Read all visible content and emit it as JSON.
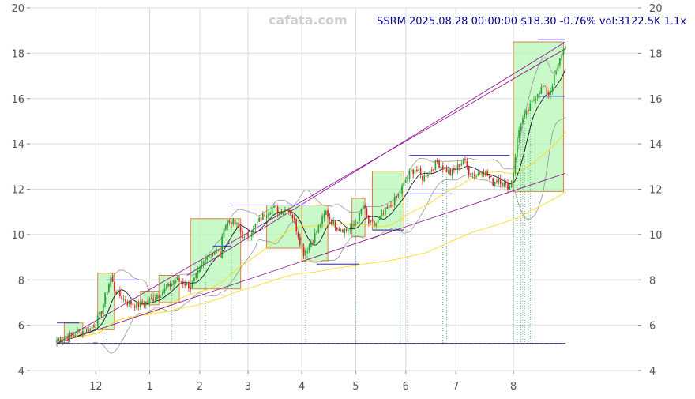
{
  "chart_data": {
    "type": "candlestick",
    "watermark": "cafata.com",
    "header": "SSRM 2025.08.28 00:00:00 $18.30 -0.76% vol:3122.5K 1.1x",
    "ticker": "SSRM",
    "last_close": 18.3,
    "ylim": [
      4,
      20
    ],
    "yticks": [
      4,
      6,
      8,
      10,
      12,
      14,
      16,
      18,
      20
    ],
    "xlim": [
      0,
      300
    ],
    "xticks": [
      {
        "label": "12",
        "x": 21
      },
      {
        "label": "1",
        "x": 50
      },
      {
        "label": "2",
        "x": 77
      },
      {
        "label": "3",
        "x": 103
      },
      {
        "label": "4",
        "x": 132
      },
      {
        "label": "5",
        "x": 161
      },
      {
        "label": "6",
        "x": 188
      },
      {
        "label": "7",
        "x": 215
      },
      {
        "label": "8",
        "x": 246
      }
    ],
    "grid": true,
    "close_anchors": [
      [
        0,
        5.35
      ],
      [
        6,
        5.5
      ],
      [
        12,
        5.7
      ],
      [
        18,
        5.85
      ],
      [
        21,
        6.1
      ],
      [
        24,
        6.6
      ],
      [
        27,
        7.6
      ],
      [
        29,
        8.1
      ],
      [
        31,
        7.6
      ],
      [
        34,
        7.3
      ],
      [
        38,
        7.0
      ],
      [
        44,
        6.9
      ],
      [
        48,
        7.0
      ],
      [
        52,
        7.2
      ],
      [
        56,
        7.4
      ],
      [
        60,
        7.7
      ],
      [
        64,
        8.0
      ],
      [
        68,
        7.9
      ],
      [
        72,
        7.7
      ],
      [
        75,
        8.1
      ],
      [
        78,
        8.6
      ],
      [
        81,
        9.1
      ],
      [
        86,
        9.3
      ],
      [
        88,
        9.1
      ],
      [
        90,
        10.4
      ],
      [
        94,
        10.6
      ],
      [
        98,
        10.3
      ],
      [
        101,
        9.8
      ],
      [
        104,
        10.1
      ],
      [
        108,
        10.5
      ],
      [
        112,
        10.9
      ],
      [
        116,
        11.2
      ],
      [
        120,
        11.0
      ],
      [
        124,
        11.2
      ],
      [
        127,
        10.8
      ],
      [
        130,
        10.0
      ],
      [
        133,
        9.2
      ],
      [
        135,
        9.4
      ],
      [
        138,
        9.8
      ],
      [
        141,
        10.3
      ],
      [
        145,
        11.0
      ],
      [
        148,
        10.6
      ],
      [
        152,
        10.3
      ],
      [
        156,
        10.2
      ],
      [
        160,
        10.4
      ],
      [
        163,
        10.8
      ],
      [
        165,
        11.3
      ],
      [
        168,
        10.5
      ],
      [
        171,
        10.4
      ],
      [
        175,
        10.8
      ],
      [
        179,
        11.2
      ],
      [
        183,
        11.6
      ],
      [
        187,
        12.2
      ],
      [
        190,
        12.7
      ],
      [
        193,
        12.9
      ],
      [
        197,
        12.5
      ],
      [
        201,
        12.8
      ],
      [
        205,
        13.2
      ],
      [
        208,
        13.0
      ],
      [
        212,
        12.7
      ],
      [
        215,
        12.9
      ],
      [
        219,
        13.3
      ],
      [
        222,
        12.8
      ],
      [
        226,
        12.6
      ],
      [
        229,
        12.9
      ],
      [
        232,
        12.6
      ],
      [
        235,
        12.3
      ],
      [
        238,
        12.5
      ],
      [
        241,
        12.2
      ],
      [
        244,
        12.1
      ],
      [
        246,
        12.8
      ],
      [
        248,
        14.2
      ],
      [
        250,
        15.0
      ],
      [
        253,
        15.3
      ],
      [
        256,
        15.8
      ],
      [
        259,
        16.3
      ],
      [
        262,
        16.5
      ],
      [
        265,
        16.2
      ],
      [
        268,
        16.9
      ],
      [
        270,
        17.4
      ],
      [
        272,
        18.0
      ],
      [
        274,
        18.3
      ]
    ],
    "boxes": [
      {
        "x0": 4,
        "x1": 14,
        "low": 5.5,
        "high": 6.1
      },
      {
        "x0": 22,
        "x1": 31,
        "low": 5.8,
        "high": 8.3
      },
      {
        "x0": 45,
        "x1": 55,
        "low": 6.9,
        "high": 7.5
      },
      {
        "x0": 55,
        "x1": 66,
        "low": 7.0,
        "high": 8.2
      },
      {
        "x0": 72,
        "x1": 99,
        "low": 7.6,
        "high": 10.7
      },
      {
        "x0": 113,
        "x1": 132,
        "low": 9.4,
        "high": 11.3
      },
      {
        "x0": 132,
        "x1": 146,
        "low": 8.8,
        "high": 11.3
      },
      {
        "x0": 159,
        "x1": 166,
        "low": 9.9,
        "high": 11.6
      },
      {
        "x0": 170,
        "x1": 187,
        "low": 10.2,
        "high": 12.8
      },
      {
        "x0": 246,
        "x1": 273,
        "low": 11.9,
        "high": 18.5
      }
    ],
    "levels": [
      {
        "x0": 0,
        "x1": 12,
        "y": 6.1
      },
      {
        "x0": 27,
        "x1": 44,
        "y": 8.0
      },
      {
        "x0": 84,
        "x1": 94,
        "y": 9.5
      },
      {
        "x0": 94,
        "x1": 136,
        "y": 11.3
      },
      {
        "x0": 140,
        "x1": 163,
        "y": 8.7
      },
      {
        "x0": 170,
        "x1": 187,
        "y": 10.2
      },
      {
        "x0": 190,
        "x1": 244,
        "y": 13.5
      },
      {
        "x0": 190,
        "x1": 213,
        "y": 11.8
      },
      {
        "x0": 259,
        "x1": 274,
        "y": 16.1
      },
      {
        "x0": 259,
        "x1": 274,
        "y": 18.6
      }
    ],
    "trendlines": [
      {
        "x0": 0,
        "x1": 274,
        "y0": 5.2,
        "y1": 12.7
      },
      {
        "x0": 70,
        "x1": 274,
        "y0": 8.2,
        "y1": 18.5
      },
      {
        "x0": 0,
        "x1": 274,
        "y0": 5.2,
        "y1": 18.2
      }
    ],
    "signal_x": [
      27,
      62,
      80,
      94,
      134,
      161,
      185,
      189,
      208,
      210,
      246,
      248,
      250,
      251,
      252,
      254,
      255,
      256
    ],
    "floor": 5.2,
    "colors": {
      "up": "#2ca02c",
      "down": "#d62728",
      "box_fill": "#b7f7b7",
      "box_edge": "#e08040",
      "level": "#0000cd",
      "trend": "#8b008b",
      "ma_fast": "#000000",
      "ma_mid": "#ffd700",
      "band": "#888888",
      "signal": "#2e8b57",
      "grid": "#dcdcdc"
    }
  }
}
